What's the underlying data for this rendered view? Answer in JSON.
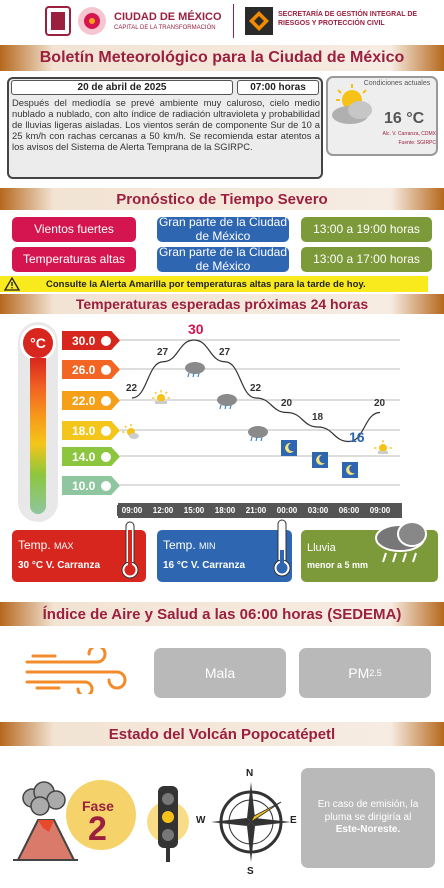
{
  "header": {
    "city_name": "CIUDAD DE MÉXICO",
    "city_tagline": "CAPITAL DE LA TRANSFORMACIÓN",
    "secretariat": "SECRETARÍA DE GESTIÓN INTEGRAL DE RIESGOS Y PROTECCIÓN CIVIL"
  },
  "title": "Boletín Meteorológico para la Ciudad de México",
  "bulletin": {
    "date": "20 de abril de 2025",
    "time": "07:00 horas",
    "text": "Después del mediodía se prevé ambiente muy caluroso, cielo medio nublado a nublado, con alto índice de radiación ultravioleta y probabilidad de lluvias ligeras aisladas. Los vientos serán de componente Sur de 10 a 25 km/h con rachas cercanas a 50 km/h. Se recomienda estar atentos a los avisos del Sistema de Alerta Temprana de la SGIRPC."
  },
  "current": {
    "label": "Condiciones actuales",
    "temp": "16 °C",
    "station": "Alc. V. Carranza, CDMX",
    "source": "Fuente: SGIRPC"
  },
  "severe": {
    "title": "Pronóstico de Tiempo Severo",
    "rows": [
      {
        "phenomenon": "Vientos fuertes",
        "area": "Gran parte de la Ciudad de México",
        "hours": "13:00 a 19:00 horas"
      },
      {
        "phenomenon": "Temperaturas altas",
        "area": "Gran parte de la Ciudad de México",
        "hours": "13:00 a 17:00 horas"
      }
    ],
    "alert": "Consulte la Alerta Amarilla por temperaturas altas para la tarde de hoy."
  },
  "temps24": {
    "title": "Temperaturas esperadas próximas 24 horas",
    "unit": "°C",
    "scale": [
      "30.0",
      "26.0",
      "22.0",
      "18.0",
      "14.0",
      "10.0"
    ],
    "scale_colors": [
      "#d7261e",
      "#f26522",
      "#f6a01a",
      "#f4c51a",
      "#8cc63f",
      "#8fc6a0"
    ]
  },
  "chart_data": {
    "type": "line",
    "x": [
      "09:00",
      "12:00",
      "15:00",
      "18:00",
      "21:00",
      "00:00",
      "03:00",
      "06:00",
      "09:00"
    ],
    "y": [
      22,
      27,
      30,
      27,
      22,
      20,
      18,
      16,
      20
    ],
    "ylim": [
      10,
      30
    ],
    "max_label": "30",
    "min_label": "16"
  },
  "summary": {
    "max_label": "Temp.",
    "max_suffix": "MAX",
    "max_value": "30  °C  V. Carranza",
    "min_label": "Temp.",
    "min_suffix": "MIN",
    "min_value": "16  °C  V. Carranza",
    "rain_label": "Lluvia",
    "rain_value": "menor a 5 mm"
  },
  "air": {
    "title": "Índice de Aire y Salud a las 06:00 horas (SEDEMA)",
    "quality": "Mala",
    "pollutant": "PM",
    "pollutant_sub": "2.5"
  },
  "volcano": {
    "title": "Estado del Volcán Popocatépetl",
    "fase_label": "Fase",
    "fase_value": "2",
    "compass": [
      "N",
      "S",
      "W",
      "E"
    ],
    "plume_text_1": "En caso de emisión, la pluma se dirigiría al",
    "plume_dir": "Este-Noreste."
  },
  "colors": {
    "brand": "#9b1f3f",
    "accent": "#b5681c",
    "red": "#d5154f",
    "blue": "#2e66b2",
    "green": "#7c9a39"
  }
}
